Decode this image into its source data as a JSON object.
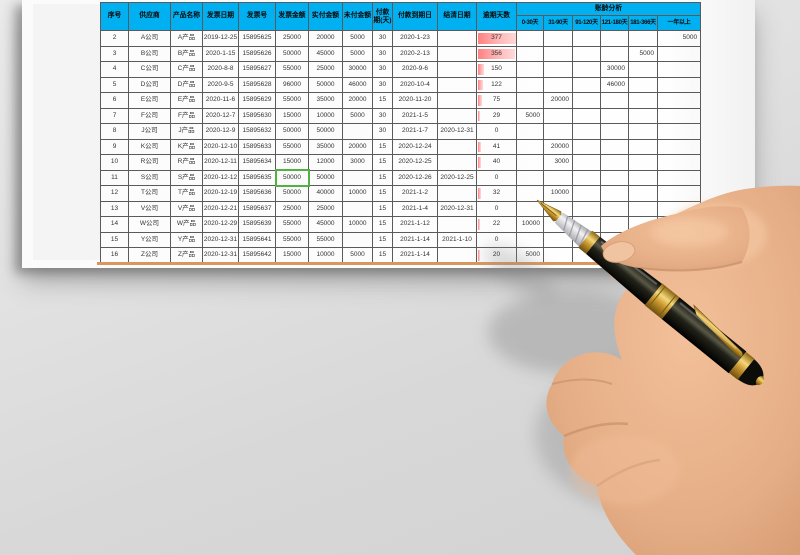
{
  "selected_cell": {
    "row_no": "11",
    "column": "发票金额",
    "value": "50000"
  },
  "colors": {
    "header_bg": "#00b0f0",
    "grid_line": "#5a5a5a",
    "overdue_bar_red": "#ff8080",
    "selected_cell_green": "#53b043",
    "table_bottom_line_tan": "#d9975e"
  },
  "table": {
    "headers": {
      "main": [
        "序号",
        "供应商",
        "产品名称",
        "发票日期",
        "发票号",
        "发票金额",
        "实付金额",
        "未付金额",
        "付款期(天)",
        "付款到期日",
        "结清日期",
        "逾期天数"
      ],
      "aging_group": "账龄分析",
      "aging": [
        "0-30天",
        "31-90天",
        "91-120天",
        "121-180天",
        "181-366天",
        "一年以上"
      ]
    },
    "rows": [
      {
        "no": "2",
        "supplier": "A公司",
        "product": "A产品",
        "invoice_date": "2019-12-25",
        "invoice_no": "15895625",
        "invoice_amount": "25000",
        "paid": "20000",
        "unpaid": "5000",
        "term": "30",
        "due_date": "2020-1-23",
        "settle_date": "",
        "overdue_days": "377",
        "bar_pct": 100,
        "aging": [
          "",
          "",
          "",
          "",
          "",
          "5000"
        ]
      },
      {
        "no": "3",
        "supplier": "B公司",
        "product": "B产品",
        "invoice_date": "2020-1-15",
        "invoice_no": "15895626",
        "invoice_amount": "50000",
        "paid": "45000",
        "unpaid": "5000",
        "term": "30",
        "due_date": "2020-2-13",
        "settle_date": "",
        "overdue_days": "356",
        "bar_pct": 96,
        "aging": [
          "",
          "",
          "",
          "",
          "5000",
          ""
        ]
      },
      {
        "no": "4",
        "supplier": "C公司",
        "product": "C产品",
        "invoice_date": "2020-8-8",
        "invoice_no": "15895627",
        "invoice_amount": "55000",
        "paid": "25000",
        "unpaid": "30000",
        "term": "30",
        "due_date": "2020-9-6",
        "settle_date": "",
        "overdue_days": "150",
        "bar_pct": 16,
        "aging": [
          "",
          "",
          "",
          "30000",
          "",
          ""
        ]
      },
      {
        "no": "5",
        "supplier": "D公司",
        "product": "D产品",
        "invoice_date": "2020-9-5",
        "invoice_no": "15895628",
        "invoice_amount": "96000",
        "paid": "50000",
        "unpaid": "46000",
        "term": "30",
        "due_date": "2020-10-4",
        "settle_date": "",
        "overdue_days": "122",
        "bar_pct": 13,
        "aging": [
          "",
          "",
          "",
          "46000",
          "",
          ""
        ]
      },
      {
        "no": "6",
        "supplier": "E公司",
        "product": "E产品",
        "invoice_date": "2020-11-6",
        "invoice_no": "15895629",
        "invoice_amount": "55000",
        "paid": "35000",
        "unpaid": "20000",
        "term": "15",
        "due_date": "2020-11-20",
        "settle_date": "",
        "overdue_days": "75",
        "bar_pct": 11,
        "aging": [
          "",
          "20000",
          "",
          "",
          "",
          ""
        ]
      },
      {
        "no": "7",
        "supplier": "F公司",
        "product": "F产品",
        "invoice_date": "2020-12-7",
        "invoice_no": "15895630",
        "invoice_amount": "15000",
        "paid": "10000",
        "unpaid": "5000",
        "term": "30",
        "due_date": "2021-1-5",
        "settle_date": "",
        "overdue_days": "29",
        "bar_pct": 6,
        "aging": [
          "5000",
          "",
          "",
          "",
          "",
          ""
        ]
      },
      {
        "no": "8",
        "supplier": "J公司",
        "product": "J产品",
        "invoice_date": "2020-12-9",
        "invoice_no": "15895632",
        "invoice_amount": "50000",
        "paid": "50000",
        "unpaid": "",
        "term": "30",
        "due_date": "2021-1-7",
        "settle_date": "2020-12-31",
        "overdue_days": "0",
        "bar_pct": 0,
        "aging": [
          "",
          "",
          "",
          "",
          "",
          ""
        ]
      },
      {
        "no": "9",
        "supplier": "K公司",
        "product": "K产品",
        "invoice_date": "2020-12-10",
        "invoice_no": "15895633",
        "invoice_amount": "55000",
        "paid": "35000",
        "unpaid": "20000",
        "term": "15",
        "due_date": "2020-12-24",
        "settle_date": "",
        "overdue_days": "41",
        "bar_pct": 8,
        "aging": [
          "",
          "20000",
          "",
          "",
          "",
          ""
        ]
      },
      {
        "no": "10",
        "supplier": "R公司",
        "product": "R产品",
        "invoice_date": "2020-12-11",
        "invoice_no": "15895634",
        "invoice_amount": "15000",
        "paid": "12000",
        "unpaid": "3000",
        "term": "15",
        "due_date": "2020-12-25",
        "settle_date": "",
        "overdue_days": "40",
        "bar_pct": 8,
        "aging": [
          "",
          "3000",
          "",
          "",
          "",
          ""
        ]
      },
      {
        "no": "11",
        "supplier": "S公司",
        "product": "S产品",
        "invoice_date": "2020-12-12",
        "invoice_no": "15895635",
        "invoice_amount": "50000",
        "paid": "50000",
        "unpaid": "",
        "term": "15",
        "due_date": "2020-12-26",
        "settle_date": "2020-12-25",
        "overdue_days": "0",
        "bar_pct": 0,
        "aging": [
          "",
          "",
          "",
          "",
          "",
          ""
        ]
      },
      {
        "no": "12",
        "supplier": "T公司",
        "product": "T产品",
        "invoice_date": "2020-12-19",
        "invoice_no": "15895636",
        "invoice_amount": "50000",
        "paid": "40000",
        "unpaid": "10000",
        "term": "15",
        "due_date": "2021-1-2",
        "settle_date": "",
        "overdue_days": "32",
        "bar_pct": 7,
        "aging": [
          "",
          "10000",
          "",
          "",
          "",
          ""
        ]
      },
      {
        "no": "13",
        "supplier": "V公司",
        "product": "V产品",
        "invoice_date": "2020-12-21",
        "invoice_no": "15895637",
        "invoice_amount": "25000",
        "paid": "25000",
        "unpaid": "",
        "term": "15",
        "due_date": "2021-1-4",
        "settle_date": "2020-12-31",
        "overdue_days": "0",
        "bar_pct": 0,
        "aging": [
          "",
          "",
          "",
          "",
          "",
          ""
        ]
      },
      {
        "no": "14",
        "supplier": "W公司",
        "product": "W产品",
        "invoice_date": "2020-12-29",
        "invoice_no": "15895639",
        "invoice_amount": "55000",
        "paid": "45000",
        "unpaid": "10000",
        "term": "15",
        "due_date": "2021-1-12",
        "settle_date": "",
        "overdue_days": "22",
        "bar_pct": 5,
        "aging": [
          "10000",
          "",
          "",
          "",
          "",
          ""
        ]
      },
      {
        "no": "15",
        "supplier": "Y公司",
        "product": "Y产品",
        "invoice_date": "2020-12-31",
        "invoice_no": "15895641",
        "invoice_amount": "55000",
        "paid": "55000",
        "unpaid": "",
        "term": "15",
        "due_date": "2021-1-14",
        "settle_date": "2021-1-10",
        "overdue_days": "0",
        "bar_pct": 0,
        "aging": [
          "",
          "",
          "",
          "",
          "",
          ""
        ]
      },
      {
        "no": "16",
        "supplier": "Z公司",
        "product": "Z产品",
        "invoice_date": "2020-12-31",
        "invoice_no": "15895642",
        "invoice_amount": "15000",
        "paid": "10000",
        "unpaid": "5000",
        "term": "15",
        "due_date": "2021-1-14",
        "settle_date": "",
        "overdue_days": "20",
        "bar_pct": 5,
        "aging": [
          "5000",
          "",
          "",
          "",
          "",
          ""
        ]
      }
    ]
  }
}
